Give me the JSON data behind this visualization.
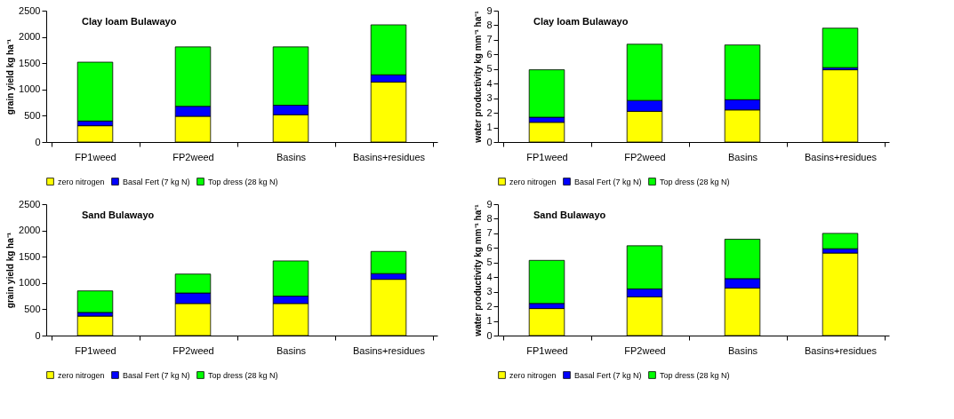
{
  "chart_data": [
    {
      "type": "bar",
      "stacked": true,
      "title": "Clay loam Bulawayo",
      "ylabel": "grain yield kg ha⁻¹",
      "categories": [
        "FP1weed",
        "FP2weed",
        "Basins",
        "Basins+residues"
      ],
      "ylim": [
        0,
        2500
      ],
      "yticks": [
        0,
        500,
        1000,
        1500,
        2000,
        2500
      ],
      "grid": false,
      "legend": "bottom",
      "series": [
        {
          "name": "zero nitrogen",
          "color": "#ffff00",
          "values": [
            310,
            490,
            520,
            1140
          ]
        },
        {
          "name": "Basal Fert (7 kg N)",
          "color": "#0000ff",
          "values": [
            90,
            190,
            180,
            140
          ]
        },
        {
          "name": "Top dress (28 kg N)",
          "color": "#00ff00",
          "values": [
            1120,
            1130,
            1110,
            950
          ]
        }
      ]
    },
    {
      "type": "bar",
      "stacked": true,
      "title": "Clay loam Bulawayo",
      "ylabel": "water productivity kg mm⁻¹ ha⁻¹",
      "categories": [
        "FP1weed",
        "FP2weed",
        "Basins",
        "Basins+residues"
      ],
      "ylim": [
        0,
        9
      ],
      "yticks": [
        0,
        1,
        2,
        3,
        4,
        5,
        6,
        7,
        8,
        9
      ],
      "grid": false,
      "legend": "bottom",
      "series": [
        {
          "name": "zero nitrogen",
          "color": "#ffff00",
          "values": [
            1.35,
            2.1,
            2.2,
            4.95
          ]
        },
        {
          "name": "Basal Fert (7 kg N)",
          "color": "#0000ff",
          "values": [
            0.35,
            0.75,
            0.7,
            0.15
          ]
        },
        {
          "name": "Top dress (28 kg N)",
          "color": "#00ff00",
          "values": [
            3.25,
            3.85,
            3.75,
            2.7
          ]
        }
      ]
    },
    {
      "type": "bar",
      "stacked": true,
      "title": "Sand Bulawayo",
      "ylabel": "grain yield kg ha⁻¹",
      "categories": [
        "FP1weed",
        "FP2weed",
        "Basins",
        "Basins+residues"
      ],
      "ylim": [
        0,
        2500
      ],
      "yticks": [
        0,
        500,
        1000,
        1500,
        2000,
        2500
      ],
      "grid": false,
      "legend": "bottom",
      "series": [
        {
          "name": "zero nitrogen",
          "color": "#ffff00",
          "values": [
            370,
            610,
            610,
            1070
          ]
        },
        {
          "name": "Basal Fert (7 kg N)",
          "color": "#0000ff",
          "values": [
            70,
            200,
            140,
            110
          ]
        },
        {
          "name": "Top dress (28 kg N)",
          "color": "#00ff00",
          "values": [
            410,
            360,
            670,
            420
          ]
        }
      ]
    },
    {
      "type": "bar",
      "stacked": true,
      "title": "Sand Bulawayo",
      "ylabel": "water productivity kg mm⁻¹ ha⁻¹",
      "categories": [
        "FP1weed",
        "FP2weed",
        "Basins",
        "Basins+residues"
      ],
      "ylim": [
        0,
        9
      ],
      "yticks": [
        0,
        1,
        2,
        3,
        4,
        5,
        6,
        7,
        8,
        9
      ],
      "grid": false,
      "legend": "bottom",
      "series": [
        {
          "name": "zero nitrogen",
          "color": "#ffff00",
          "values": [
            1.85,
            2.65,
            3.25,
            5.65
          ]
        },
        {
          "name": "Basal Fert (7 kg N)",
          "color": "#0000ff",
          "values": [
            0.35,
            0.55,
            0.65,
            0.3
          ]
        },
        {
          "name": "Top dress (28 kg N)",
          "color": "#00ff00",
          "values": [
            2.95,
            2.95,
            2.7,
            1.05
          ]
        }
      ]
    }
  ]
}
